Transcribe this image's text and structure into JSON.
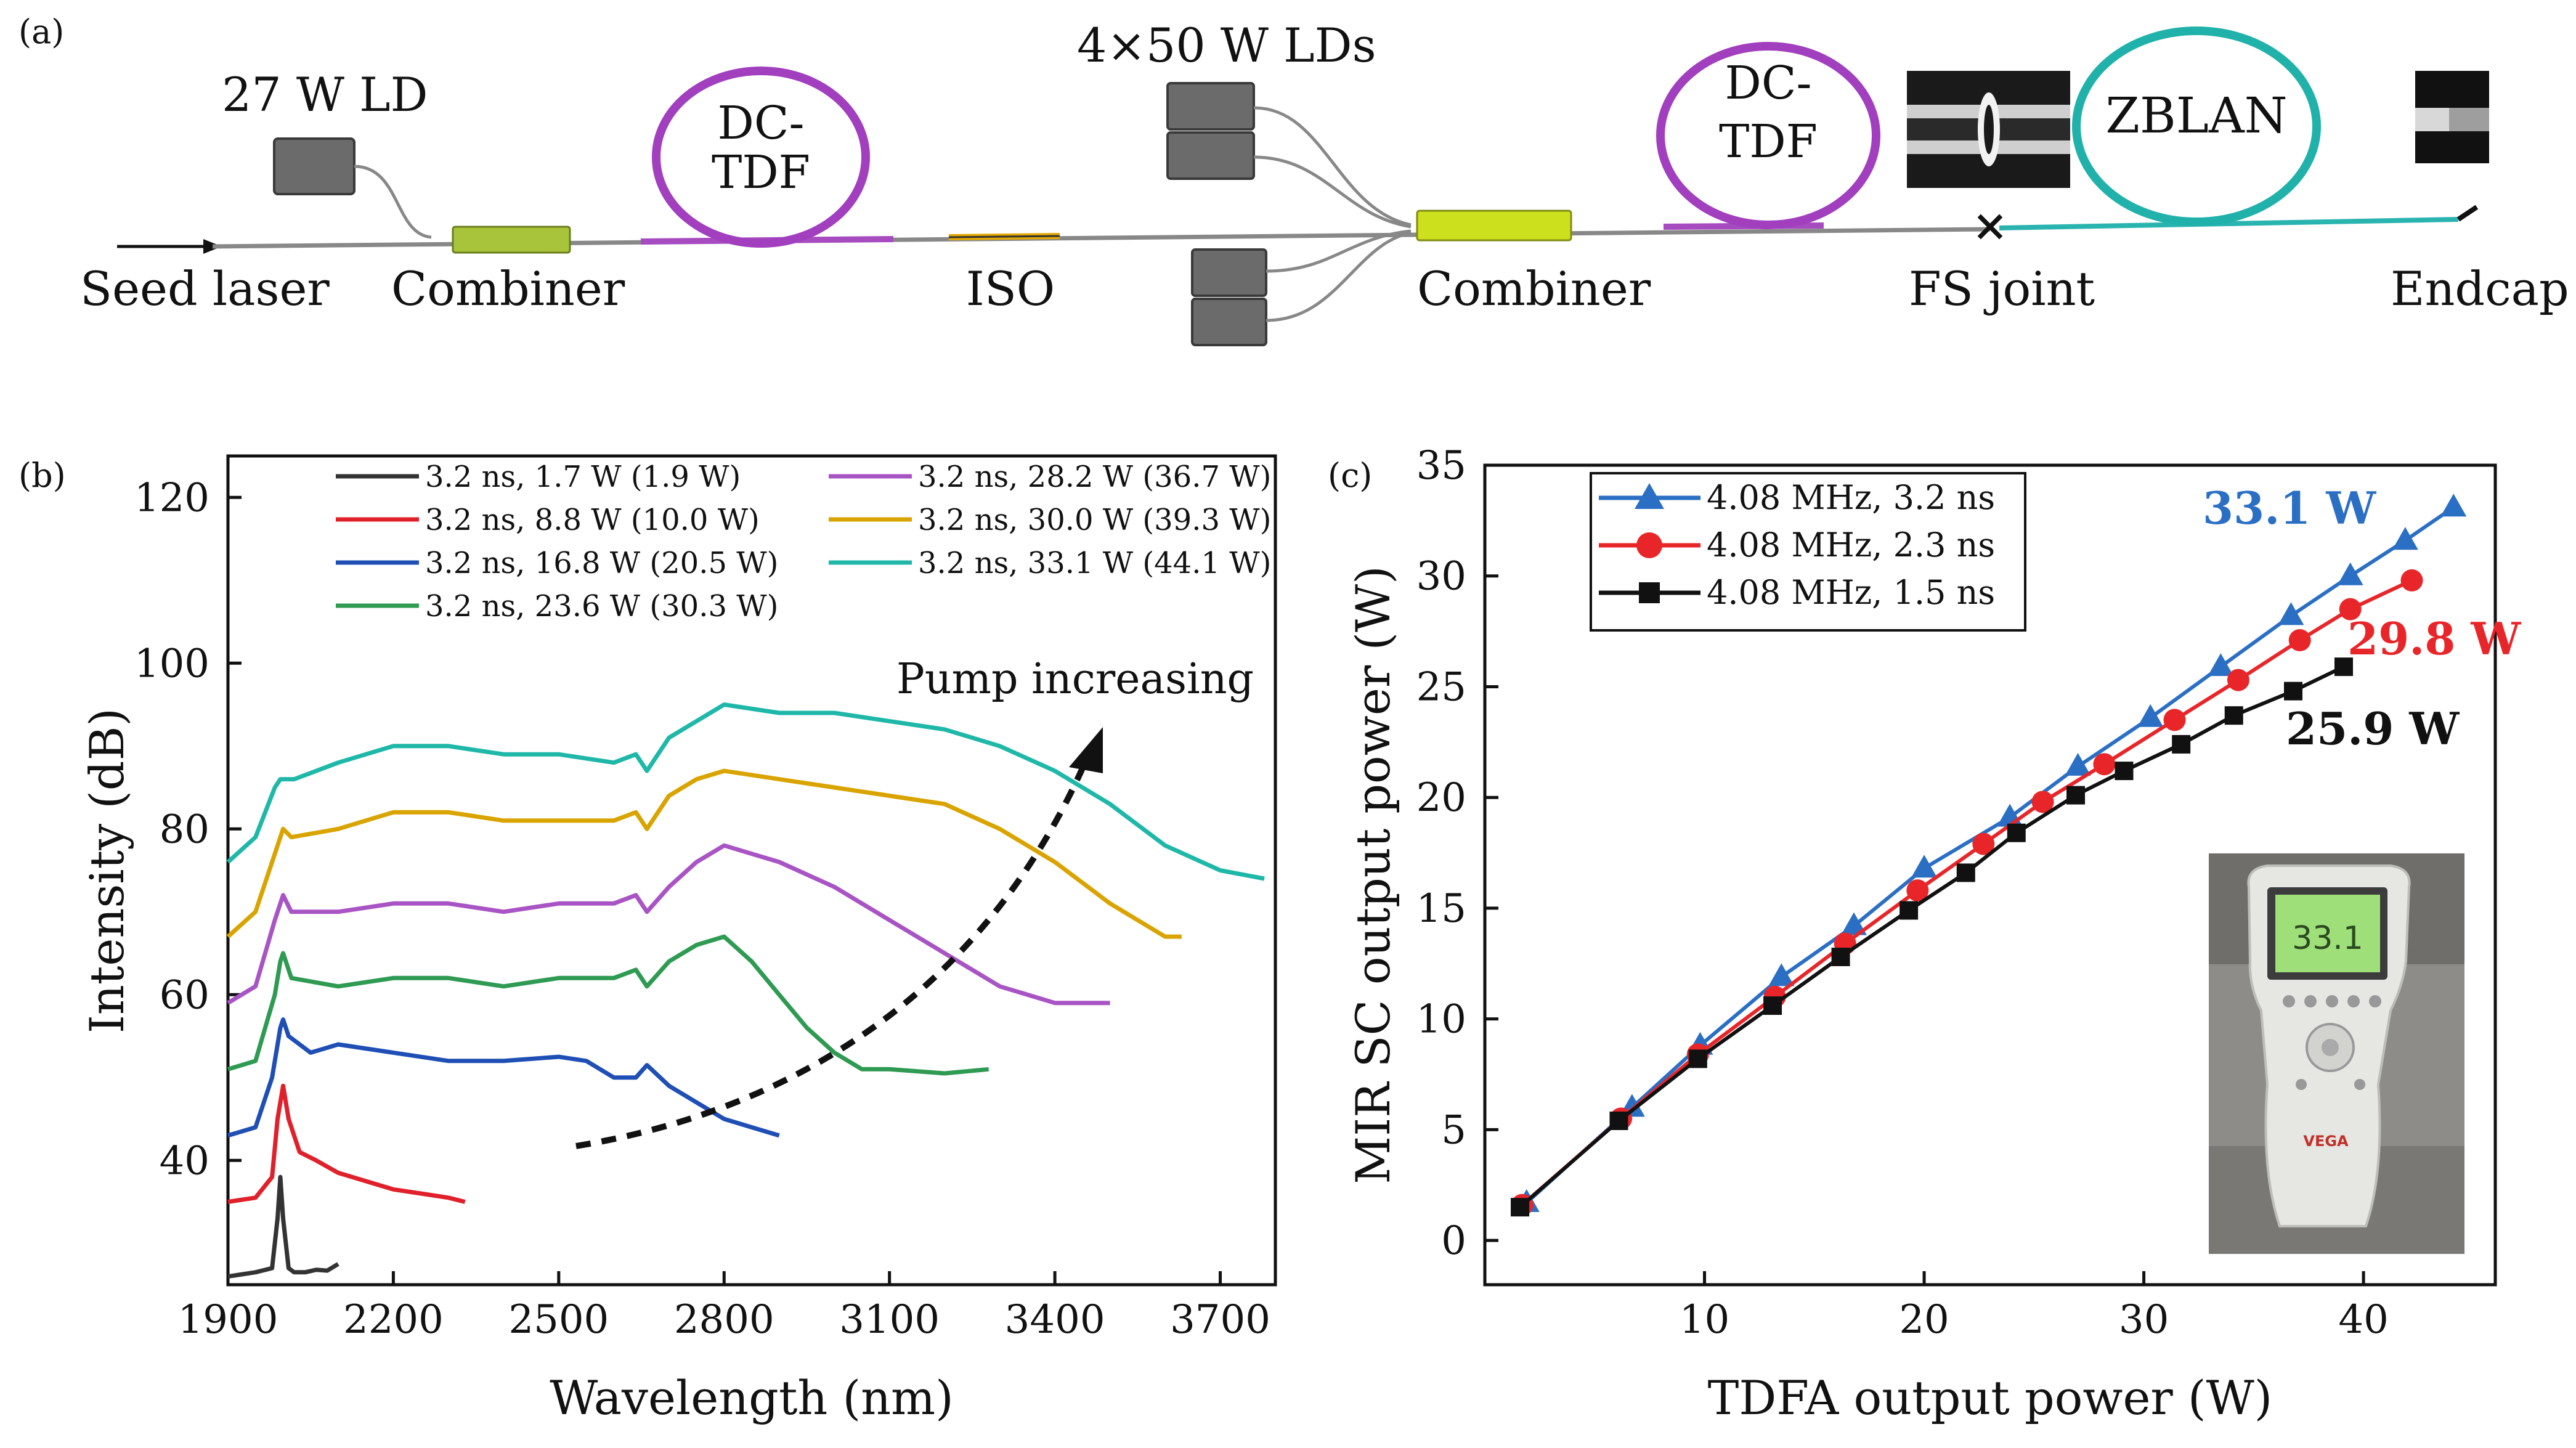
{
  "panel_labels": {
    "a": "(a)",
    "b": "(b)",
    "c": "(c)"
  },
  "diagram": {
    "seed_laser": "Seed laser",
    "ld27": "27 W LD",
    "combiner1": "Combiner",
    "dctdf1": [
      "DC-",
      "TDF"
    ],
    "iso": "ISO",
    "lds": "4×50 W LDs",
    "combiner2": "Combiner",
    "dctdf2": [
      "DC-",
      "TDF"
    ],
    "fs_joint": "FS joint",
    "zblan": "ZBLAN",
    "endcap": "Endcap"
  },
  "chart_data": [
    {
      "type": "line",
      "title": "",
      "xlabel": "Wavelength (nm)",
      "ylabel": "Intensity (dB)",
      "xlim": [
        1900,
        3800
      ],
      "ylim": [
        25,
        125
      ],
      "xticks": [
        "1900",
        "2200",
        "2500",
        "2800",
        "3100",
        "3400",
        "3700"
      ],
      "yticks": [
        "40",
        "60",
        "80",
        "100",
        "120"
      ],
      "annotation": "Pump increasing",
      "series": [
        {
          "name": "3.2 ns, 1.7 W (1.9 W)",
          "color": "#333333",
          "x": [
            1900,
            1950,
            1980,
            1990,
            1995,
            2000,
            2010,
            2020,
            2040,
            2060,
            2080,
            2100
          ],
          "y": [
            26,
            26.5,
            27,
            33,
            38,
            33,
            27,
            26.5,
            26.5,
            26.8,
            26.7,
            27.5
          ]
        },
        {
          "name": "3.2 ns, 8.8 W (10.0 W)",
          "color": "#e0202a",
          "x": [
            1900,
            1950,
            1980,
            1990,
            2000,
            2010,
            2030,
            2060,
            2100,
            2150,
            2200,
            2250,
            2300,
            2330
          ],
          "y": [
            35,
            35.5,
            38,
            45,
            49,
            45,
            41,
            40,
            38.5,
            37.5,
            36.5,
            36,
            35.5,
            35
          ]
        },
        {
          "name": "3.2 ns, 16.8 W (20.5 W)",
          "color": "#1f4fb5",
          "x": [
            1900,
            1950,
            1980,
            1995,
            2000,
            2010,
            2050,
            2100,
            2200,
            2300,
            2400,
            2500,
            2550,
            2600,
            2640,
            2660,
            2700,
            2750,
            2800,
            2850,
            2900
          ],
          "y": [
            43,
            44,
            50,
            56,
            57,
            55,
            53,
            54,
            53,
            52,
            52,
            52.5,
            52,
            50,
            50,
            51.5,
            49,
            47,
            45,
            44,
            43
          ]
        },
        {
          "name": "3.2 ns, 23.6 W (30.3 W)",
          "color": "#2e9a52",
          "x": [
            1900,
            1950,
            1985,
            1995,
            2000,
            2015,
            2100,
            2200,
            2300,
            2400,
            2500,
            2600,
            2640,
            2660,
            2700,
            2750,
            2800,
            2850,
            2900,
            2950,
            3000,
            3050,
            3100,
            3200,
            3280
          ],
          "y": [
            51,
            52,
            60,
            64,
            65,
            62,
            61,
            62,
            62,
            61,
            62,
            62,
            63,
            61,
            64,
            66,
            67,
            64,
            60,
            56,
            53,
            51,
            51,
            50.5,
            51
          ]
        },
        {
          "name": "3.2 ns, 28.2 W (36.7 W)",
          "color": "#a854c4",
          "x": [
            1900,
            1950,
            1985,
            1995,
            2000,
            2015,
            2100,
            2200,
            2300,
            2400,
            2500,
            2600,
            2640,
            2660,
            2700,
            2750,
            2800,
            2900,
            3000,
            3100,
            3200,
            3300,
            3400,
            3500
          ],
          "y": [
            59,
            61,
            69,
            71,
            72,
            70,
            70,
            71,
            71,
            70,
            71,
            71,
            72,
            70,
            73,
            76,
            78,
            76,
            73,
            69,
            65,
            61,
            59,
            59
          ]
        },
        {
          "name": "3.2 ns, 30.0 W (39.3 W)",
          "color": "#d9a400",
          "x": [
            1900,
            1950,
            1985,
            1995,
            2000,
            2015,
            2100,
            2200,
            2300,
            2400,
            2500,
            2600,
            2640,
            2660,
            2700,
            2750,
            2800,
            2900,
            3000,
            3100,
            3200,
            3300,
            3400,
            3500,
            3600,
            3630
          ],
          "y": [
            67,
            70,
            77,
            79,
            80,
            79,
            80,
            82,
            82,
            81,
            81,
            81,
            82,
            80,
            84,
            86,
            87,
            86,
            85,
            84,
            83,
            80,
            76,
            71,
            67,
            67
          ]
        },
        {
          "name": "3.2 ns, 33.1 W (44.1 W)",
          "color": "#1fb8a8",
          "x": [
            1900,
            1950,
            1985,
            1995,
            2000,
            2020,
            2100,
            2200,
            2300,
            2400,
            2500,
            2600,
            2640,
            2660,
            2700,
            2750,
            2800,
            2900,
            3000,
            3100,
            3200,
            3300,
            3400,
            3500,
            3600,
            3700,
            3780
          ],
          "y": [
            76,
            79,
            85,
            86,
            86,
            86,
            88,
            90,
            90,
            89,
            89,
            88,
            89,
            87,
            91,
            93,
            95,
            94,
            94,
            93,
            92,
            90,
            87,
            83,
            78,
            75,
            74
          ]
        }
      ]
    },
    {
      "type": "line",
      "title": "",
      "xlabel": "TDFA output power (W)",
      "ylabel": "MIR SC output power (W)",
      "xlim": [
        0,
        46
      ],
      "ylim": [
        -2,
        35
      ],
      "xticks": [
        "10",
        "20",
        "30",
        "40"
      ],
      "yticks": [
        "0",
        "5",
        "10",
        "15",
        "20",
        "25",
        "30",
        "35"
      ],
      "annotations": [
        "33.1 W",
        "29.8 W",
        "25.9 W"
      ],
      "inset_readout": "33.1",
      "inset_brand": "VEGA",
      "series": [
        {
          "name": "4.08 MHz, 3.2 ns",
          "color": "#2b6fc4",
          "marker": "triangle",
          "x": [
            1.9,
            6.7,
            9.8,
            13.5,
            16.8,
            20.0,
            23.9,
            27.0,
            30.3,
            33.5,
            36.7,
            39.4,
            41.9,
            44.1
          ],
          "y": [
            1.7,
            6.0,
            8.8,
            11.9,
            14.2,
            16.8,
            19.1,
            21.4,
            23.6,
            25.9,
            28.2,
            30.0,
            31.6,
            33.1
          ]
        },
        {
          "name": "4.08 MHz, 2.3 ns",
          "color": "#e8262a",
          "marker": "circle",
          "x": [
            1.7,
            6.2,
            9.7,
            13.2,
            16.4,
            19.7,
            22.7,
            25.4,
            28.2,
            31.4,
            34.3,
            37.1,
            39.4,
            42.2
          ],
          "y": [
            1.6,
            5.5,
            8.4,
            11.0,
            13.4,
            15.8,
            17.9,
            19.8,
            21.5,
            23.5,
            25.3,
            27.1,
            28.5,
            29.8
          ]
        },
        {
          "name": "4.08 MHz, 1.5 ns",
          "color": "#111111",
          "marker": "square",
          "x": [
            1.6,
            6.1,
            9.7,
            13.1,
            16.2,
            19.3,
            21.9,
            24.2,
            26.9,
            29.1,
            31.7,
            34.1,
            36.8,
            39.1
          ],
          "y": [
            1.5,
            5.4,
            8.2,
            10.6,
            12.8,
            14.9,
            16.6,
            18.4,
            20.1,
            21.2,
            22.4,
            23.7,
            24.8,
            25.9
          ]
        }
      ]
    }
  ]
}
